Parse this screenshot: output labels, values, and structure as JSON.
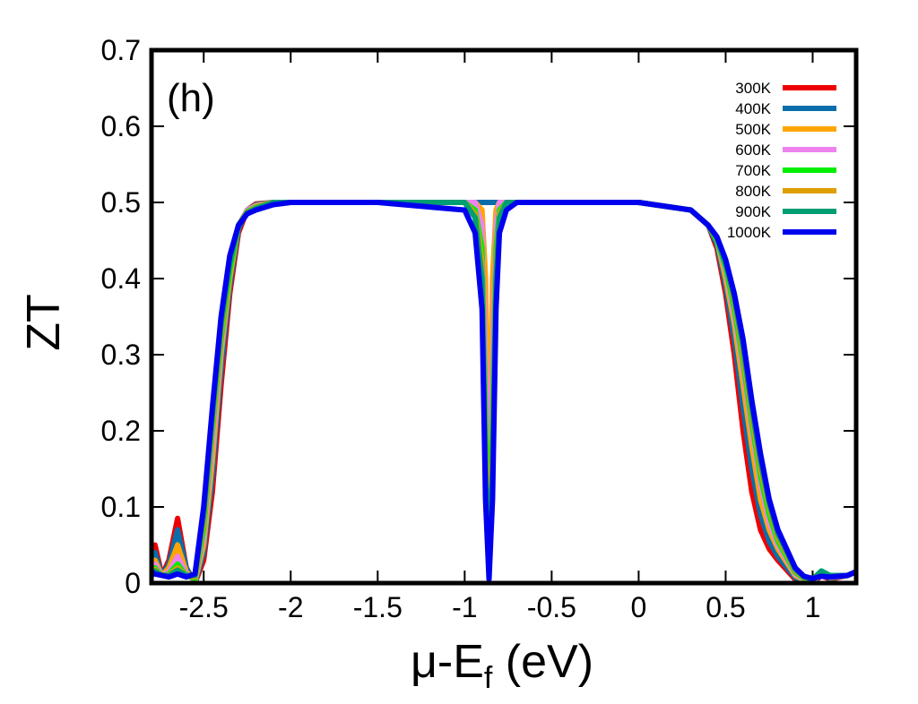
{
  "chart_data": {
    "type": "line",
    "panel_label": "(h)",
    "xlabel": "μ-E",
    "xlabel_sub": "f",
    "xlabel_unit": " (eV)",
    "ylabel": "ZT",
    "xlim": [
      -2.8,
      1.25
    ],
    "ylim": [
      0,
      0.7
    ],
    "xticks": [
      -2.5,
      -2,
      -1.5,
      -1,
      -0.5,
      0,
      0.5,
      1
    ],
    "xtick_labels": [
      "-2.5",
      "-2",
      "-1.5",
      "-1",
      "-0.5",
      "0",
      "0.5",
      "1"
    ],
    "yticks": [
      0,
      0.1,
      0.2,
      0.3,
      0.4,
      0.5,
      0.6,
      0.7
    ],
    "ytick_labels": [
      "0",
      "0.1",
      "0.2",
      "0.3",
      "0.4",
      "0.5",
      "0.6",
      "0.7"
    ],
    "legend_position": "top-right",
    "series": [
      {
        "name": "300K",
        "color": "#ee0000",
        "x": [
          -2.8,
          -2.78,
          -2.74,
          -2.7,
          -2.65,
          -2.6,
          -2.55,
          -2.5,
          -2.45,
          -2.4,
          -2.35,
          -2.3,
          -2.25,
          -2.2,
          -2.1,
          -2.0,
          -1.5,
          -1.0,
          -0.94,
          -0.9,
          -0.88,
          -0.86,
          -0.84,
          -0.82,
          -0.8,
          -0.76,
          -0.7,
          -0.5,
          0.0,
          0.3,
          0.4,
          0.45,
          0.5,
          0.55,
          0.6,
          0.65,
          0.7,
          0.75,
          0.8,
          0.9,
          0.95,
          1.0,
          1.05,
          1.1,
          1.2,
          1.25
        ],
        "y": [
          0.01,
          0.05,
          0.01,
          0.03,
          0.085,
          0.02,
          0.0,
          0.03,
          0.12,
          0.26,
          0.38,
          0.46,
          0.49,
          0.498,
          0.5,
          0.5,
          0.5,
          0.5,
          0.5,
          0.5,
          0.5,
          0.5,
          0.5,
          0.5,
          0.5,
          0.5,
          0.5,
          0.5,
          0.5,
          0.49,
          0.47,
          0.44,
          0.38,
          0.3,
          0.2,
          0.12,
          0.07,
          0.045,
          0.03,
          0.005,
          0.0,
          0.0,
          0.01,
          0.005,
          0.01,
          0.015
        ]
      },
      {
        "name": "400K",
        "color": "#0a6eaa",
        "x": [
          -2.8,
          -2.78,
          -2.74,
          -2.7,
          -2.65,
          -2.6,
          -2.55,
          -2.5,
          -2.45,
          -2.4,
          -2.35,
          -2.3,
          -2.25,
          -2.2,
          -2.1,
          -2.0,
          -1.5,
          -1.0,
          -0.94,
          -0.9,
          -0.88,
          -0.86,
          -0.84,
          -0.82,
          -0.8,
          -0.76,
          -0.7,
          -0.5,
          0.0,
          0.3,
          0.4,
          0.45,
          0.5,
          0.55,
          0.6,
          0.65,
          0.7,
          0.75,
          0.8,
          0.9,
          0.95,
          1.0,
          1.05,
          1.1,
          1.2,
          1.25
        ],
        "y": [
          0.01,
          0.04,
          0.01,
          0.025,
          0.07,
          0.02,
          0.0,
          0.04,
          0.14,
          0.28,
          0.39,
          0.465,
          0.49,
          0.497,
          0.5,
          0.5,
          0.5,
          0.5,
          0.5,
          0.5,
          0.5,
          0.5,
          0.5,
          0.5,
          0.5,
          0.5,
          0.5,
          0.5,
          0.5,
          0.49,
          0.47,
          0.445,
          0.39,
          0.32,
          0.23,
          0.15,
          0.09,
          0.055,
          0.035,
          0.007,
          0.002,
          0.0,
          0.012,
          0.006,
          0.01,
          0.015
        ]
      },
      {
        "name": "500K",
        "color": "#ffa500",
        "x": [
          -2.8,
          -2.78,
          -2.74,
          -2.7,
          -2.65,
          -2.6,
          -2.55,
          -2.5,
          -2.45,
          -2.4,
          -2.35,
          -2.3,
          -2.25,
          -2.2,
          -2.1,
          -2.0,
          -1.5,
          -1.0,
          -0.94,
          -0.9,
          -0.88,
          -0.86,
          -0.84,
          -0.82,
          -0.8,
          -0.76,
          -0.7,
          -0.5,
          0.0,
          0.3,
          0.4,
          0.45,
          0.5,
          0.55,
          0.6,
          0.65,
          0.7,
          0.75,
          0.8,
          0.9,
          0.95,
          1.0,
          1.05,
          1.1,
          1.2,
          1.25
        ],
        "y": [
          0.01,
          0.03,
          0.01,
          0.02,
          0.05,
          0.015,
          0.002,
          0.05,
          0.16,
          0.3,
          0.4,
          0.47,
          0.49,
          0.496,
          0.5,
          0.5,
          0.5,
          0.5,
          0.5,
          0.49,
          0.4,
          0.12,
          0.4,
          0.49,
          0.5,
          0.5,
          0.5,
          0.5,
          0.5,
          0.49,
          0.47,
          0.45,
          0.4,
          0.34,
          0.26,
          0.18,
          0.11,
          0.07,
          0.045,
          0.01,
          0.004,
          0.001,
          0.013,
          0.007,
          0.01,
          0.015
        ]
      },
      {
        "name": "600K",
        "color": "#ee82ee",
        "x": [
          -2.8,
          -2.78,
          -2.74,
          -2.7,
          -2.65,
          -2.6,
          -2.55,
          -2.5,
          -2.45,
          -2.4,
          -2.35,
          -2.3,
          -2.25,
          -2.2,
          -2.1,
          -2.0,
          -1.5,
          -1.0,
          -0.94,
          -0.9,
          -0.88,
          -0.86,
          -0.84,
          -0.82,
          -0.8,
          -0.76,
          -0.7,
          -0.5,
          0.0,
          0.3,
          0.4,
          0.45,
          0.5,
          0.55,
          0.6,
          0.65,
          0.7,
          0.75,
          0.8,
          0.9,
          0.95,
          1.0,
          1.05,
          1.1,
          1.2,
          1.25
        ],
        "y": [
          0.01,
          0.025,
          0.01,
          0.015,
          0.035,
          0.012,
          0.004,
          0.06,
          0.18,
          0.31,
          0.41,
          0.47,
          0.49,
          0.495,
          0.5,
          0.5,
          0.5,
          0.5,
          0.5,
          0.47,
          0.3,
          0.07,
          0.3,
          0.47,
          0.5,
          0.5,
          0.5,
          0.5,
          0.5,
          0.49,
          0.47,
          0.45,
          0.41,
          0.35,
          0.28,
          0.2,
          0.13,
          0.08,
          0.05,
          0.012,
          0.005,
          0.002,
          0.014,
          0.008,
          0.01,
          0.015
        ]
      },
      {
        "name": "700K",
        "color": "#00ee00",
        "x": [
          -2.8,
          -2.78,
          -2.74,
          -2.7,
          -2.65,
          -2.6,
          -2.55,
          -2.5,
          -2.45,
          -2.4,
          -2.35,
          -2.3,
          -2.25,
          -2.2,
          -2.1,
          -2.0,
          -1.5,
          -1.0,
          -0.94,
          -0.9,
          -0.88,
          -0.86,
          -0.84,
          -0.82,
          -0.8,
          -0.76,
          -0.7,
          -0.5,
          0.0,
          0.3,
          0.4,
          0.45,
          0.5,
          0.55,
          0.6,
          0.65,
          0.7,
          0.75,
          0.8,
          0.9,
          0.95,
          1.0,
          1.05,
          1.1,
          1.2,
          1.25
        ],
        "y": [
          0.01,
          0.02,
          0.01,
          0.012,
          0.025,
          0.01,
          0.006,
          0.07,
          0.2,
          0.32,
          0.41,
          0.47,
          0.488,
          0.494,
          0.5,
          0.5,
          0.5,
          0.5,
          0.49,
          0.44,
          0.22,
          0.04,
          0.22,
          0.44,
          0.49,
          0.5,
          0.5,
          0.5,
          0.5,
          0.49,
          0.47,
          0.45,
          0.415,
          0.36,
          0.29,
          0.21,
          0.14,
          0.09,
          0.055,
          0.014,
          0.006,
          0.003,
          0.015,
          0.009,
          0.01,
          0.015
        ]
      },
      {
        "name": "800K",
        "color": "#dda000",
        "x": [
          -2.8,
          -2.78,
          -2.74,
          -2.7,
          -2.65,
          -2.6,
          -2.55,
          -2.5,
          -2.45,
          -2.4,
          -2.35,
          -2.3,
          -2.25,
          -2.2,
          -2.1,
          -2.0,
          -1.5,
          -1.0,
          -0.94,
          -0.9,
          -0.88,
          -0.86,
          -0.84,
          -0.82,
          -0.8,
          -0.76,
          -0.7,
          -0.5,
          0.0,
          0.3,
          0.4,
          0.45,
          0.5,
          0.55,
          0.6,
          0.65,
          0.7,
          0.75,
          0.8,
          0.9,
          0.95,
          1.0,
          1.05,
          1.1,
          1.2,
          1.25
        ],
        "y": [
          0.01,
          0.018,
          0.01,
          0.011,
          0.02,
          0.01,
          0.008,
          0.08,
          0.21,
          0.33,
          0.42,
          0.47,
          0.487,
          0.493,
          0.5,
          0.5,
          0.5,
          0.5,
          0.485,
          0.42,
          0.18,
          0.03,
          0.18,
          0.42,
          0.485,
          0.5,
          0.5,
          0.5,
          0.5,
          0.49,
          0.47,
          0.452,
          0.42,
          0.37,
          0.3,
          0.22,
          0.15,
          0.1,
          0.06,
          0.016,
          0.007,
          0.004,
          0.015,
          0.01,
          0.01,
          0.015
        ]
      },
      {
        "name": "900K",
        "color": "#009e73",
        "x": [
          -2.8,
          -2.78,
          -2.74,
          -2.7,
          -2.65,
          -2.6,
          -2.55,
          -2.5,
          -2.45,
          -2.4,
          -2.35,
          -2.3,
          -2.25,
          -2.2,
          -2.1,
          -2.0,
          -1.5,
          -1.0,
          -0.94,
          -0.9,
          -0.88,
          -0.86,
          -0.84,
          -0.82,
          -0.8,
          -0.76,
          -0.7,
          -0.5,
          0.0,
          0.3,
          0.4,
          0.45,
          0.5,
          0.55,
          0.6,
          0.65,
          0.7,
          0.75,
          0.8,
          0.9,
          0.95,
          1.0,
          1.05,
          1.1,
          1.2,
          1.25
        ],
        "y": [
          0.01,
          0.016,
          0.01,
          0.01,
          0.017,
          0.01,
          0.01,
          0.09,
          0.22,
          0.34,
          0.42,
          0.47,
          0.486,
          0.492,
          0.5,
          0.5,
          0.5,
          0.5,
          0.48,
          0.4,
          0.15,
          0.02,
          0.15,
          0.4,
          0.48,
          0.5,
          0.5,
          0.5,
          0.5,
          0.49,
          0.47,
          0.453,
          0.42,
          0.375,
          0.31,
          0.23,
          0.16,
          0.105,
          0.065,
          0.018,
          0.008,
          0.005,
          0.016,
          0.01,
          0.01,
          0.015
        ]
      },
      {
        "name": "1000K",
        "color": "#0000ee",
        "x": [
          -2.8,
          -2.78,
          -2.74,
          -2.7,
          -2.65,
          -2.6,
          -2.55,
          -2.5,
          -2.45,
          -2.4,
          -2.35,
          -2.3,
          -2.25,
          -2.2,
          -2.1,
          -2.0,
          -1.5,
          -1.0,
          -0.94,
          -0.9,
          -0.88,
          -0.86,
          -0.84,
          -0.82,
          -0.8,
          -0.76,
          -0.7,
          -0.5,
          0.0,
          0.3,
          0.4,
          0.45,
          0.5,
          0.55,
          0.6,
          0.65,
          0.7,
          0.75,
          0.8,
          0.9,
          0.95,
          1.0,
          1.05,
          1.1,
          1.2,
          1.25
        ],
        "y": [
          0.015,
          0.012,
          0.01,
          0.008,
          0.012,
          0.008,
          0.012,
          0.1,
          0.23,
          0.35,
          0.43,
          0.47,
          0.485,
          0.49,
          0.497,
          0.5,
          0.5,
          0.49,
          0.46,
          0.36,
          0.11,
          0.005,
          0.11,
          0.36,
          0.46,
          0.49,
          0.5,
          0.5,
          0.5,
          0.49,
          0.47,
          0.455,
          0.425,
          0.38,
          0.32,
          0.24,
          0.17,
          0.11,
          0.07,
          0.02,
          0.009,
          0.006,
          0.009,
          0.008,
          0.01,
          0.015
        ]
      }
    ]
  }
}
